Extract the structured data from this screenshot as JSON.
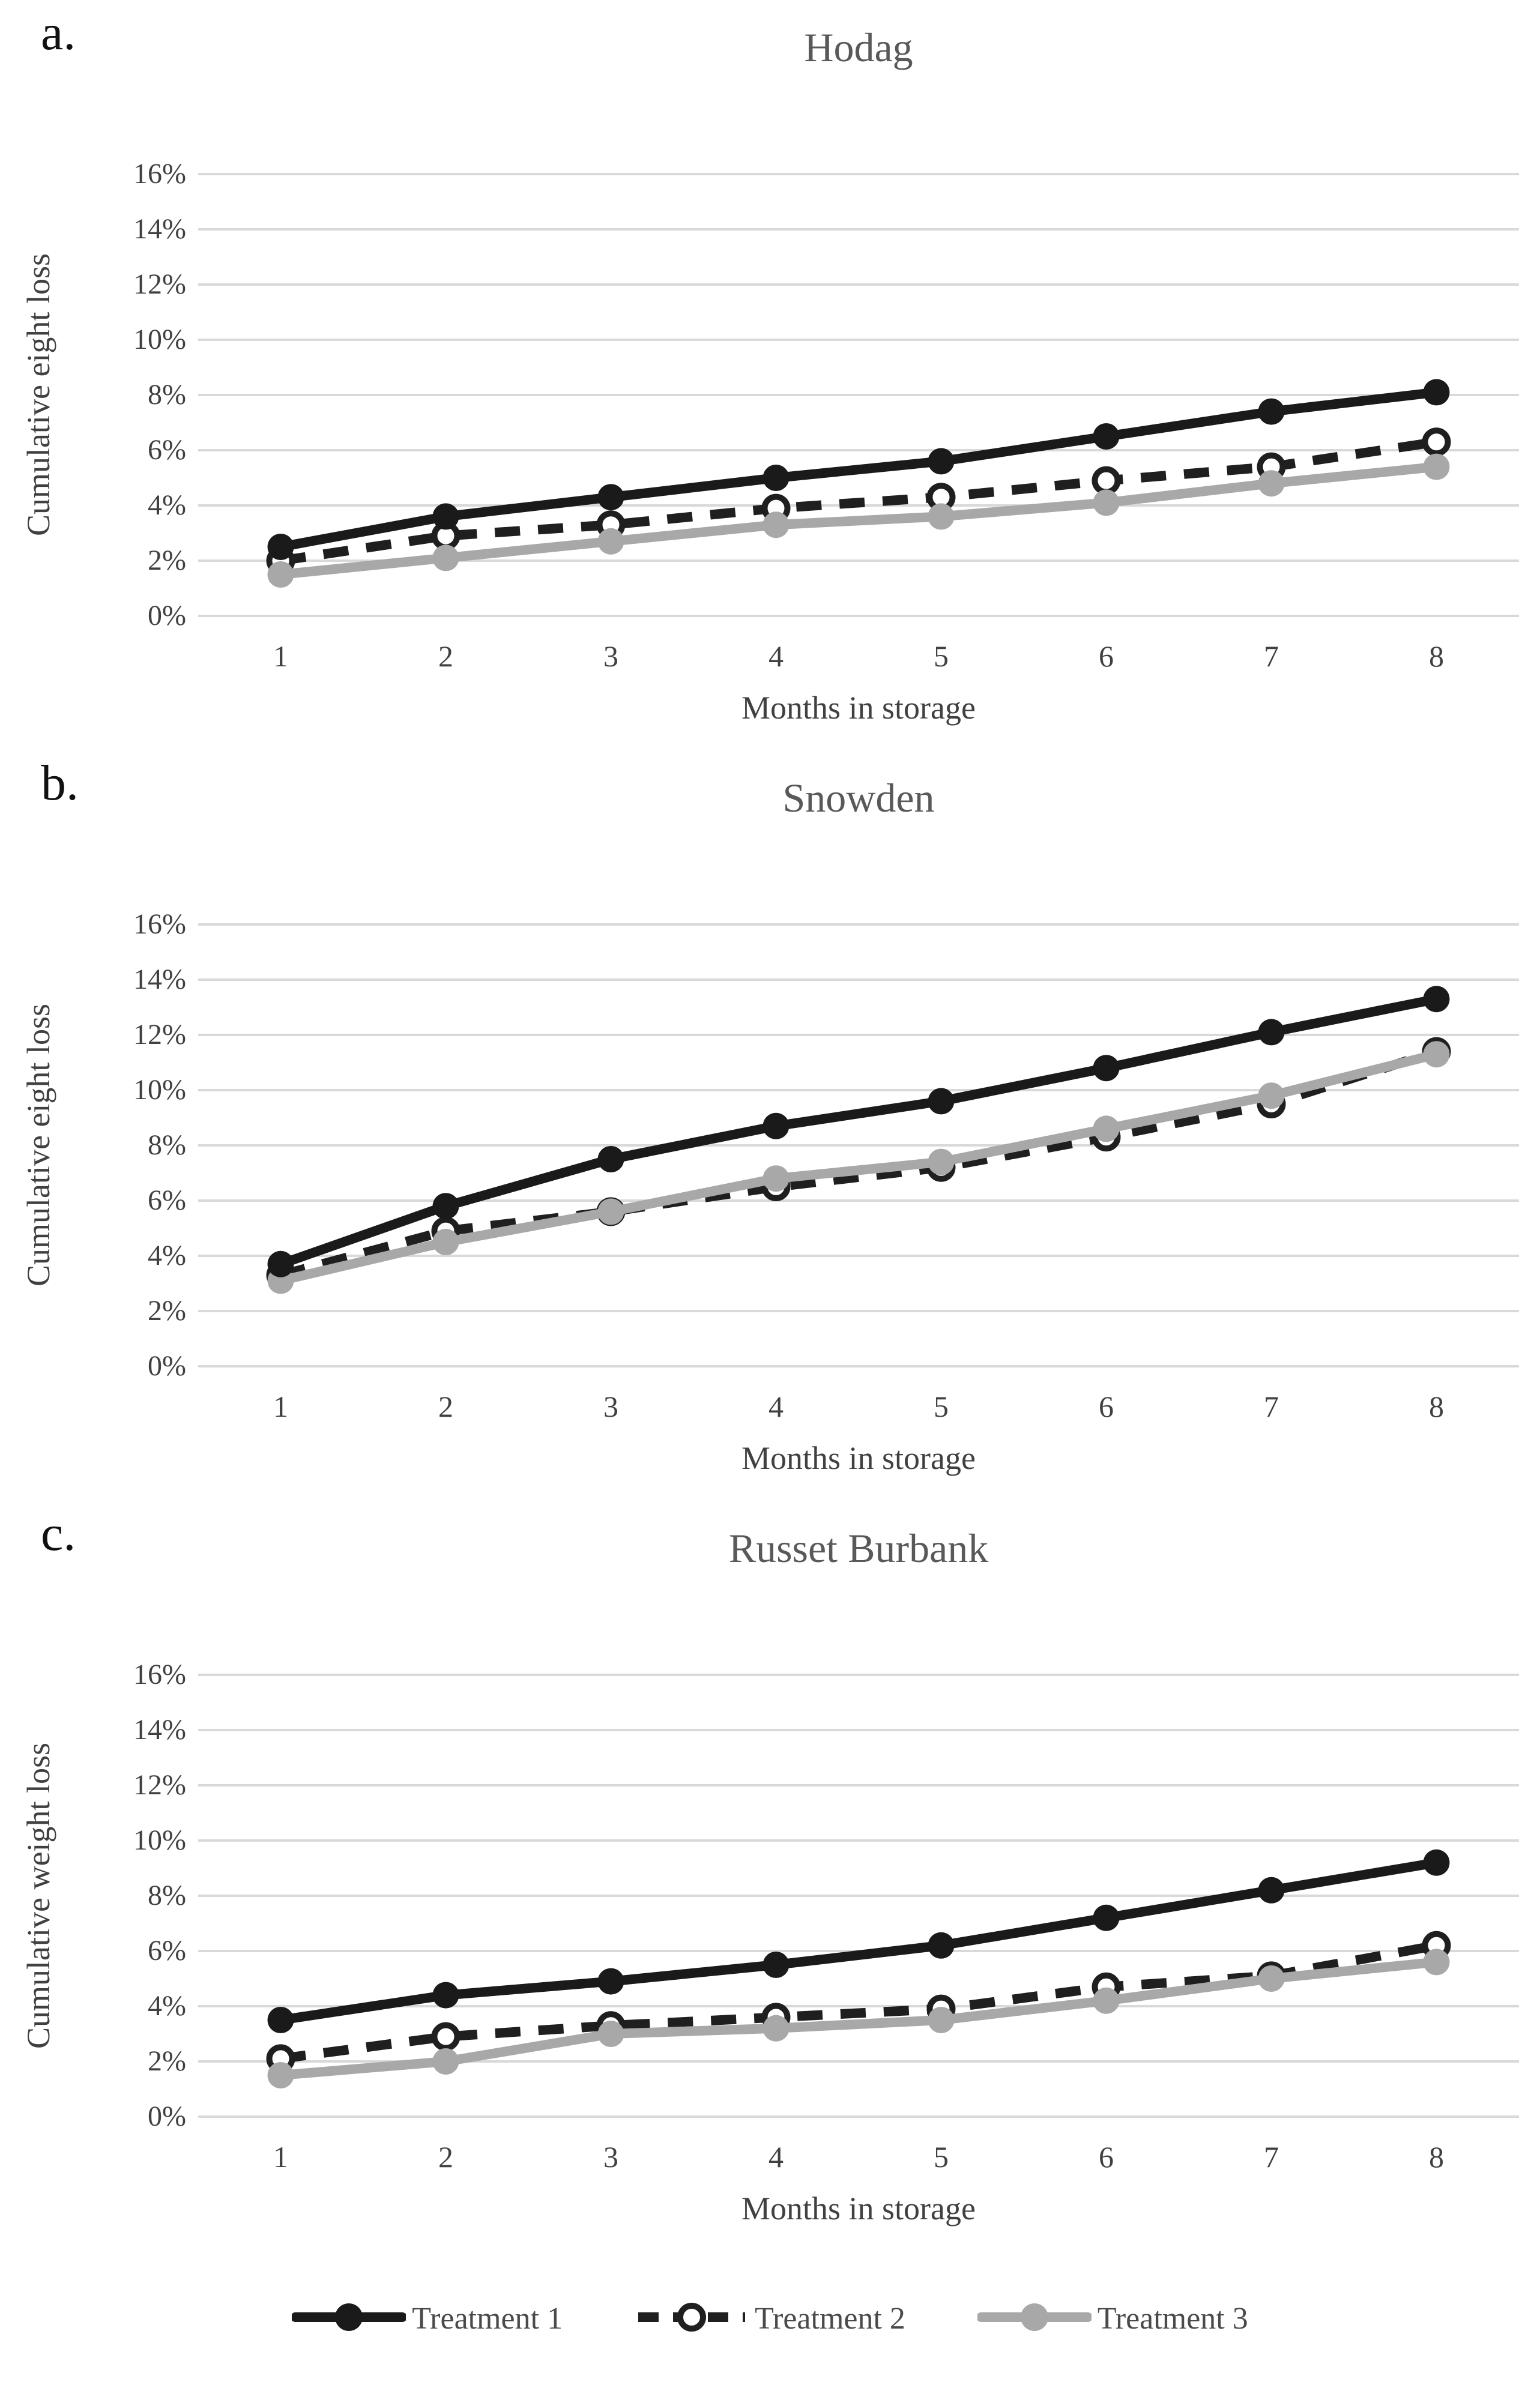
{
  "figure": {
    "panels": [
      {
        "letter": "a.",
        "y_ticks": [
          "16%",
          "14%",
          "12%",
          "10%",
          "8%",
          "6%",
          "4%",
          "2%",
          "0%"
        ],
        "x_ticks": [
          "1",
          "2",
          "3",
          "4",
          "5",
          "6",
          "7",
          "8"
        ]
      },
      {
        "letter": "b.",
        "y_ticks": [
          "16%",
          "14%",
          "12%",
          "10%",
          "8%",
          "6%",
          "4%",
          "2%",
          "0%"
        ],
        "x_ticks": [
          "1",
          "2",
          "3",
          "4",
          "5",
          "6",
          "7",
          "8"
        ]
      },
      {
        "letter": "c.",
        "y_ticks": [
          "16%",
          "14%",
          "12%",
          "10%",
          "8%",
          "6%",
          "4%",
          "2%",
          "0%"
        ],
        "x_ticks": [
          "1",
          "2",
          "3",
          "4",
          "5",
          "6",
          "7",
          "8"
        ]
      }
    ]
  },
  "chart_data": [
    {
      "type": "line",
      "title": "Hodag",
      "xlabel": "Months in storage",
      "ylabel": "Cumulative eight loss",
      "x": [
        1,
        2,
        3,
        4,
        5,
        6,
        7,
        8
      ],
      "ylim": [
        0,
        16
      ],
      "y_tick_step": 2,
      "y_unit": "%",
      "grid": true,
      "legend_position": "bottom",
      "series": [
        {
          "name": "Treatment 1",
          "values": [
            2.5,
            3.6,
            4.3,
            5.0,
            5.6,
            6.5,
            7.4,
            8.1
          ]
        },
        {
          "name": "Treatment 2",
          "values": [
            2.0,
            2.9,
            3.3,
            3.9,
            4.3,
            4.9,
            5.4,
            6.3
          ]
        },
        {
          "name": "Treatment 3",
          "values": [
            1.5,
            2.1,
            2.7,
            3.3,
            3.6,
            4.1,
            4.8,
            5.4
          ]
        }
      ]
    },
    {
      "type": "line",
      "title": "Snowden",
      "xlabel": "Months in storage",
      "ylabel": "Cumulative eight loss",
      "x": [
        1,
        2,
        3,
        4,
        5,
        6,
        7,
        8
      ],
      "ylim": [
        0,
        16
      ],
      "y_tick_step": 2,
      "y_unit": "%",
      "grid": true,
      "legend_position": "bottom",
      "series": [
        {
          "name": "Treatment 1",
          "values": [
            3.7,
            5.8,
            7.5,
            8.7,
            9.6,
            10.8,
            12.1,
            13.3
          ]
        },
        {
          "name": "Treatment 2",
          "values": [
            3.3,
            4.9,
            5.6,
            6.5,
            7.2,
            8.3,
            9.5,
            11.4
          ]
        },
        {
          "name": "Treatment 3",
          "values": [
            3.1,
            4.5,
            5.6,
            6.8,
            7.4,
            8.6,
            9.8,
            11.3
          ]
        }
      ]
    },
    {
      "type": "line",
      "title": "Russet Burbank",
      "xlabel": "Months in storage",
      "ylabel": "Cumulative weight loss",
      "x": [
        1,
        2,
        3,
        4,
        5,
        6,
        7,
        8
      ],
      "ylim": [
        0,
        16
      ],
      "y_tick_step": 2,
      "y_unit": "%",
      "grid": true,
      "legend_position": "bottom",
      "series": [
        {
          "name": "Treatment 1",
          "values": [
            3.5,
            4.4,
            4.9,
            5.5,
            6.2,
            7.2,
            8.2,
            9.2
          ]
        },
        {
          "name": "Treatment 2",
          "values": [
            2.1,
            2.9,
            3.3,
            3.6,
            3.9,
            4.7,
            5.1,
            6.2
          ]
        },
        {
          "name": "Treatment 3",
          "values": [
            1.5,
            2.0,
            3.0,
            3.2,
            3.5,
            4.2,
            5.0,
            5.6
          ]
        }
      ]
    }
  ],
  "legend": {
    "items": [
      {
        "label": "Treatment 1",
        "color": "#1a1a1a",
        "line_style": "solid",
        "marker": "filled-circle"
      },
      {
        "label": "Treatment 2",
        "color": "#1f1f1f",
        "line_style": "dashed",
        "marker": "open-circle"
      },
      {
        "label": "Treatment 3",
        "color": "#a8a8a8",
        "line_style": "solid",
        "marker": "filled-circle"
      }
    ]
  },
  "style": {
    "gridline_color": "#d9d9d9",
    "title_color": "#595959",
    "tick_color": "#404040",
    "letter_color": "#111111",
    "background": "#ffffff"
  }
}
